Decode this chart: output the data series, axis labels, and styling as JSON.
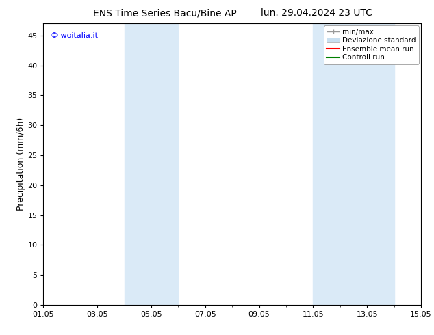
{
  "title_left": "ENS Time Series Bacu/Bine AP",
  "title_right": "lun. 29.04.2024 23 UTC",
  "ylabel": "Precipitation (mm/6h)",
  "watermark": "© woitalia.it",
  "watermark_color": "#0000ff",
  "ylim": [
    0,
    47
  ],
  "yticks": [
    0,
    5,
    10,
    15,
    20,
    25,
    30,
    35,
    40,
    45
  ],
  "xtick_labels": [
    "01.05",
    "03.05",
    "05.05",
    "07.05",
    "09.05",
    "11.05",
    "13.05",
    "15.05"
  ],
  "xtick_positions_days": [
    0,
    2,
    4,
    6,
    8,
    10,
    12,
    14
  ],
  "shaded_bands": [
    {
      "x_start_days": 3.0,
      "x_end_days": 5.0
    },
    {
      "x_start_days": 10.0,
      "x_end_days": 13.0
    }
  ],
  "shade_color": "#daeaf7",
  "legend_labels": [
    "min/max",
    "Deviazione standard",
    "Ensemble mean run",
    "Controll run"
  ],
  "legend_colors": [
    "#aaaaaa",
    "#c8dff0",
    "#ff0000",
    "#008000"
  ],
  "bg_color": "#ffffff",
  "title_fontsize": 10,
  "tick_fontsize": 8,
  "ylabel_fontsize": 9,
  "legend_fontsize": 7.5,
  "x_min": 0,
  "x_max": 14
}
